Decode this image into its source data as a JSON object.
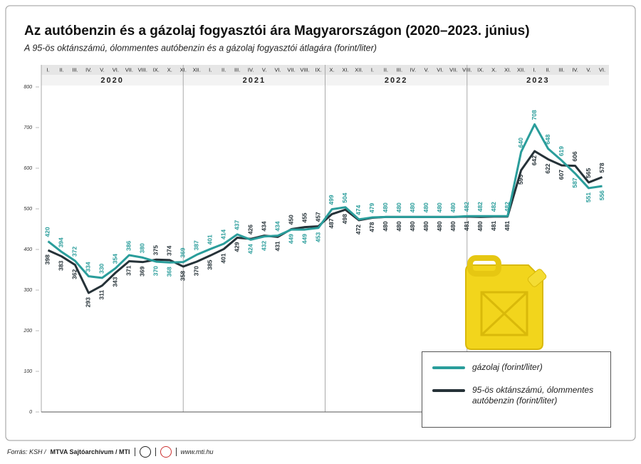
{
  "chart_data": {
    "type": "line",
    "title": "Az autóbenzin és a gázolaj fogyasztói ára Magyarországon (2020–2023. június)",
    "subtitle": "A 95-ös oktánszámú, ólommentes autóbenzin és a gázolaj fogyasztói átlagára (forint/liter)",
    "categories": [
      "I.",
      "II.",
      "III.",
      "IV.",
      "V.",
      "VI.",
      "VII.",
      "VIII.",
      "IX.",
      "X.",
      "XI.",
      "XII.",
      "I.",
      "II.",
      "III.",
      "IV.",
      "V.",
      "VI.",
      "VII.",
      "VIII.",
      "IX.",
      "X.",
      "XI.",
      "XII.",
      "I.",
      "II.",
      "III.",
      "IV.",
      "V.",
      "VI.",
      "VII.",
      "VIII.",
      "IX.",
      "X.",
      "XI.",
      "XII.",
      "I.",
      "II.",
      "III.",
      "IV.",
      "V.",
      "VI."
    ],
    "years": [
      "2020",
      "2021",
      "2022",
      "2023"
    ],
    "series": [
      {
        "name": "gázolaj (forint/liter)",
        "color": "#2a9d9b",
        "values": [
          420,
          394,
          372,
          334,
          330,
          354,
          386,
          380,
          370,
          368,
          369,
          387,
          401,
          414,
          437,
          424,
          432,
          434,
          449,
          449,
          453,
          499,
          504,
          474,
          479,
          480,
          480,
          480,
          480,
          480,
          480,
          482,
          482,
          482,
          482,
          640,
          708,
          648,
          619,
          587,
          551,
          556
        ]
      },
      {
        "name": "95-ös oktánszámú, ólommentes autóbenzin (forint/liter)",
        "color": "#263238",
        "values": [
          398,
          383,
          362,
          293,
          311,
          343,
          371,
          369,
          375,
          374,
          358,
          370,
          385,
          401,
          429,
          426,
          434,
          431,
          450,
          455,
          457,
          487,
          498,
          472,
          478,
          480,
          480,
          480,
          480,
          480,
          480,
          481,
          480,
          481,
          481,
          595,
          642,
          622,
          607,
          606,
          565,
          578
        ]
      }
    ],
    "ylim": [
      0,
      800
    ],
    "yticks": [
      0,
      100,
      200,
      300,
      400,
      500,
      600,
      700,
      800
    ]
  },
  "footer": {
    "source": "Forrás: KSH /",
    "credit": "MTVA Sajtóarchívum / MTI",
    "url": "www.mti.hu"
  }
}
